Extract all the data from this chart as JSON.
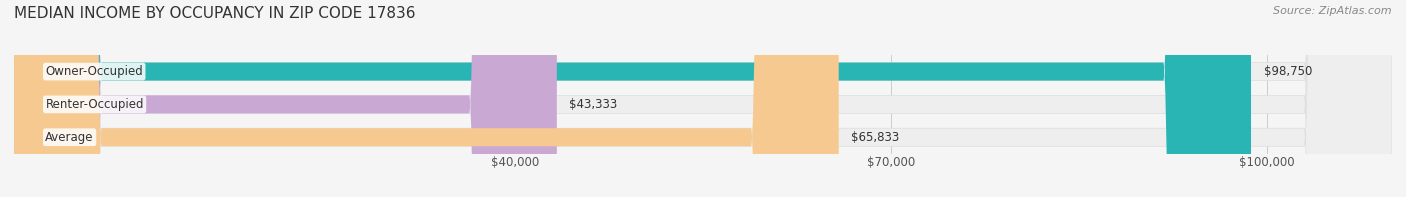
{
  "title": "MEDIAN INCOME BY OCCUPANCY IN ZIP CODE 17836",
  "source": "Source: ZipAtlas.com",
  "categories": [
    "Owner-Occupied",
    "Renter-Occupied",
    "Average"
  ],
  "values": [
    98750,
    43333,
    65833
  ],
  "bar_colors": [
    "#2ab5b5",
    "#c9a8d4",
    "#f5c990"
  ],
  "bar_labels": [
    "$98,750",
    "$43,333",
    "$65,833"
  ],
  "xlim": [
    0,
    110000
  ],
  "xticks": [
    40000,
    70000,
    100000
  ],
  "xticklabels": [
    "$40,000",
    "$70,000",
    "$100,000"
  ],
  "bg_color": "#f5f5f5",
  "bar_bg_color": "#eeeeee",
  "label_bg_color": "#ffffff",
  "title_fontsize": 11,
  "source_fontsize": 8,
  "tick_fontsize": 8.5,
  "bar_label_fontsize": 8.5,
  "category_fontsize": 8.5,
  "bar_height": 0.55
}
